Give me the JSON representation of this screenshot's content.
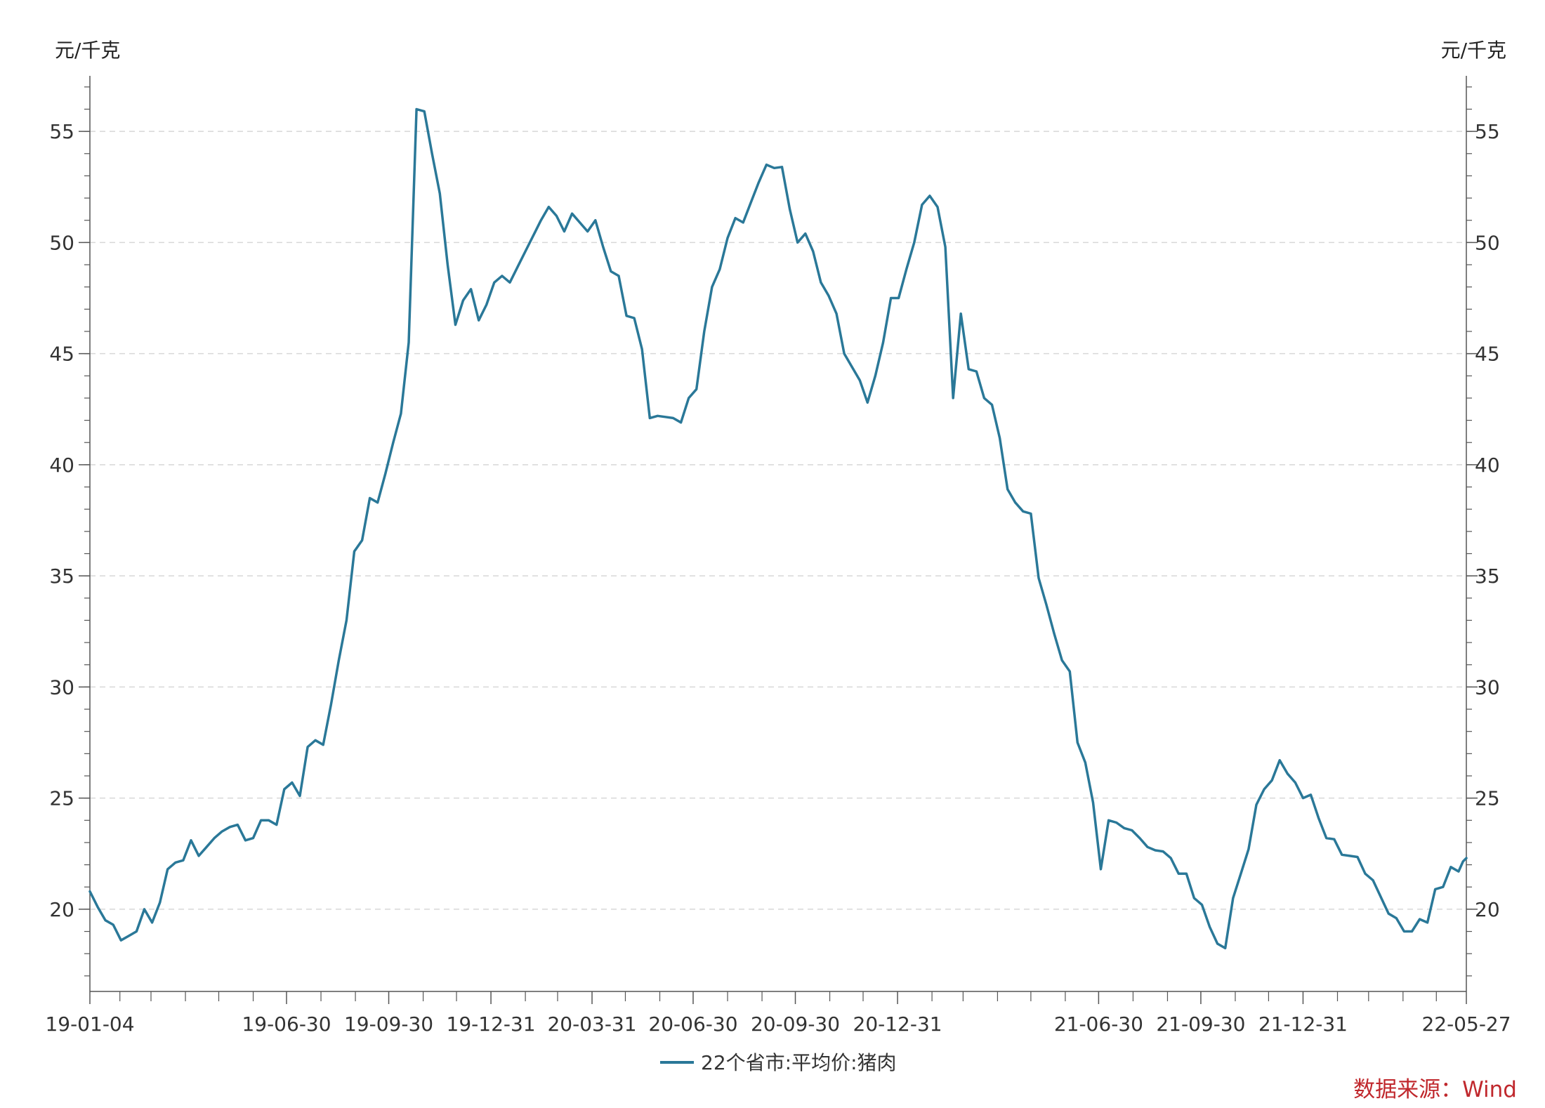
{
  "chart_data": {
    "type": "line",
    "y_unit_left": "元/千克",
    "y_unit_right": "元/千克",
    "ylim": [
      16.3,
      57.5
    ],
    "yticks": [
      20,
      25,
      30,
      35,
      40,
      45,
      50,
      55
    ],
    "grid": "horizontal-dashed",
    "x_range": [
      "2019-01-04",
      "2022-05-27"
    ],
    "xtick_labels": [
      {
        "date": "2019-01-04",
        "label": "19-01-04"
      },
      {
        "date": "2019-06-30",
        "label": "19-06-30"
      },
      {
        "date": "2019-09-30",
        "label": "19-09-30"
      },
      {
        "date": "2019-12-31",
        "label": "19-12-31"
      },
      {
        "date": "2020-03-31",
        "label": "20-03-31"
      },
      {
        "date": "2020-06-30",
        "label": "20-06-30"
      },
      {
        "date": "2020-09-30",
        "label": "20-09-30"
      },
      {
        "date": "2020-12-31",
        "label": "20-12-31"
      },
      {
        "date": "2021-06-30",
        "label": "21-06-30"
      },
      {
        "date": "2021-09-30",
        "label": "21-09-30"
      },
      {
        "date": "2021-12-31",
        "label": "21-12-31"
      },
      {
        "date": "2022-05-27",
        "label": "22-05-27"
      }
    ],
    "minor_tick_dates": [
      "2019-01-31",
      "2019-02-28",
      "2019-03-31",
      "2019-04-30",
      "2019-05-31",
      "2019-07-31",
      "2019-08-31",
      "2019-10-31",
      "2019-11-30",
      "2020-01-31",
      "2020-02-29",
      "2020-04-30",
      "2020-05-31",
      "2020-07-31",
      "2020-08-31",
      "2020-10-31",
      "2020-11-30",
      "2021-01-31",
      "2021-02-28",
      "2021-03-31",
      "2021-04-30",
      "2021-05-31",
      "2021-07-31",
      "2021-08-31",
      "2021-10-31",
      "2021-11-30",
      "2022-01-31",
      "2022-02-28",
      "2022-03-31",
      "2022-04-30"
    ],
    "legend": "bottom-center",
    "series": [
      {
        "name": "22个省市:平均价:猪肉",
        "color": "#2a7898",
        "points": [
          [
            "2019-01-04",
            20.8
          ],
          [
            "2019-01-11",
            20.1
          ],
          [
            "2019-01-18",
            19.5
          ],
          [
            "2019-01-25",
            19.3
          ],
          [
            "2019-02-01",
            18.6
          ],
          [
            "2019-02-08",
            18.8
          ],
          [
            "2019-02-15",
            19.0
          ],
          [
            "2019-02-22",
            20.0
          ],
          [
            "2019-03-01",
            19.4
          ],
          [
            "2019-03-08",
            20.3
          ],
          [
            "2019-03-15",
            21.8
          ],
          [
            "2019-03-22",
            22.1
          ],
          [
            "2019-03-29",
            22.2
          ],
          [
            "2019-04-05",
            23.1
          ],
          [
            "2019-04-12",
            22.4
          ],
          [
            "2019-04-19",
            22.8
          ],
          [
            "2019-04-26",
            23.2
          ],
          [
            "2019-05-03",
            23.5
          ],
          [
            "2019-05-10",
            23.7
          ],
          [
            "2019-05-17",
            23.8
          ],
          [
            "2019-05-24",
            23.1
          ],
          [
            "2019-05-31",
            23.2
          ],
          [
            "2019-06-07",
            24.0
          ],
          [
            "2019-06-14",
            24.0
          ],
          [
            "2019-06-21",
            23.8
          ],
          [
            "2019-06-28",
            25.4
          ],
          [
            "2019-07-05",
            25.7
          ],
          [
            "2019-07-12",
            25.1
          ],
          [
            "2019-07-19",
            27.3
          ],
          [
            "2019-07-26",
            27.6
          ],
          [
            "2019-08-02",
            27.4
          ],
          [
            "2019-08-09",
            29.2
          ],
          [
            "2019-08-16",
            31.2
          ],
          [
            "2019-08-23",
            33.0
          ],
          [
            "2019-08-30",
            36.1
          ],
          [
            "2019-09-06",
            36.6
          ],
          [
            "2019-09-13",
            38.5
          ],
          [
            "2019-09-20",
            38.3
          ],
          [
            "2019-09-27",
            39.6
          ],
          [
            "2019-10-04",
            41.0
          ],
          [
            "2019-10-11",
            42.3
          ],
          [
            "2019-10-18",
            45.5
          ],
          [
            "2019-10-25",
            56.0
          ],
          [
            "2019-11-01",
            55.9
          ],
          [
            "2019-11-08",
            54.0
          ],
          [
            "2019-11-15",
            52.2
          ],
          [
            "2019-11-22",
            49.0
          ],
          [
            "2019-11-29",
            46.3
          ],
          [
            "2019-12-06",
            47.4
          ],
          [
            "2019-12-13",
            47.9
          ],
          [
            "2019-12-20",
            46.5
          ],
          [
            "2019-12-27",
            47.2
          ],
          [
            "2020-01-03",
            48.2
          ],
          [
            "2020-01-10",
            48.5
          ],
          [
            "2020-01-17",
            48.2
          ],
          [
            "2020-01-24",
            48.9
          ],
          [
            "2020-01-31",
            49.6
          ],
          [
            "2020-02-07",
            50.3
          ],
          [
            "2020-02-14",
            51.0
          ],
          [
            "2020-02-21",
            51.6
          ],
          [
            "2020-02-28",
            51.2
          ],
          [
            "2020-03-06",
            50.5
          ],
          [
            "2020-03-13",
            51.3
          ],
          [
            "2020-03-20",
            50.9
          ],
          [
            "2020-03-27",
            50.5
          ],
          [
            "2020-04-03",
            51.0
          ],
          [
            "2020-04-10",
            49.8
          ],
          [
            "2020-04-17",
            48.7
          ],
          [
            "2020-04-24",
            48.5
          ],
          [
            "2020-05-01",
            46.7
          ],
          [
            "2020-05-08",
            46.6
          ],
          [
            "2020-05-15",
            45.2
          ],
          [
            "2020-05-22",
            42.1
          ],
          [
            "2020-05-29",
            42.2
          ],
          [
            "2020-06-05",
            42.15
          ],
          [
            "2020-06-12",
            42.1
          ],
          [
            "2020-06-19",
            41.9
          ],
          [
            "2020-06-26",
            43.0
          ],
          [
            "2020-07-03",
            43.4
          ],
          [
            "2020-07-10",
            46.0
          ],
          [
            "2020-07-17",
            48.0
          ],
          [
            "2020-07-24",
            48.8
          ],
          [
            "2020-07-31",
            50.2
          ],
          [
            "2020-08-07",
            51.1
          ],
          [
            "2020-08-14",
            50.9
          ],
          [
            "2020-08-21",
            51.8
          ],
          [
            "2020-08-28",
            52.7
          ],
          [
            "2020-09-04",
            53.5
          ],
          [
            "2020-09-11",
            53.35
          ],
          [
            "2020-09-18",
            53.4
          ],
          [
            "2020-09-25",
            51.5
          ],
          [
            "2020-10-02",
            50.0
          ],
          [
            "2020-10-09",
            50.4
          ],
          [
            "2020-10-16",
            49.6
          ],
          [
            "2020-10-23",
            48.2
          ],
          [
            "2020-10-30",
            47.6
          ],
          [
            "2020-11-06",
            46.8
          ],
          [
            "2020-11-13",
            45.0
          ],
          [
            "2020-11-20",
            44.4
          ],
          [
            "2020-11-27",
            43.8
          ],
          [
            "2020-12-04",
            42.8
          ],
          [
            "2020-12-11",
            44.0
          ],
          [
            "2020-12-18",
            45.5
          ],
          [
            "2020-12-25",
            47.5
          ],
          [
            "2021-01-01",
            47.5
          ],
          [
            "2021-01-08",
            48.8
          ],
          [
            "2021-01-15",
            50.0
          ],
          [
            "2021-01-22",
            51.7
          ],
          [
            "2021-01-29",
            52.1
          ],
          [
            "2021-02-05",
            51.6
          ],
          [
            "2021-02-12",
            49.8
          ],
          [
            "2021-02-19",
            43.0
          ],
          [
            "2021-02-26",
            46.8
          ],
          [
            "2021-03-05",
            44.3
          ],
          [
            "2021-03-12",
            44.2
          ],
          [
            "2021-03-19",
            43.0
          ],
          [
            "2021-03-26",
            42.7
          ],
          [
            "2021-04-02",
            41.2
          ],
          [
            "2021-04-09",
            38.9
          ],
          [
            "2021-04-16",
            38.3
          ],
          [
            "2021-04-23",
            37.9
          ],
          [
            "2021-04-30",
            37.8
          ],
          [
            "2021-05-07",
            34.9
          ],
          [
            "2021-05-14",
            33.7
          ],
          [
            "2021-05-21",
            32.4
          ],
          [
            "2021-05-28",
            31.2
          ],
          [
            "2021-06-04",
            30.7
          ],
          [
            "2021-06-11",
            27.5
          ],
          [
            "2021-06-18",
            26.6
          ],
          [
            "2021-06-25",
            24.8
          ],
          [
            "2021-07-02",
            21.8
          ],
          [
            "2021-07-09",
            24.0
          ],
          [
            "2021-07-16",
            23.9
          ],
          [
            "2021-07-23",
            23.65
          ],
          [
            "2021-07-30",
            23.55
          ],
          [
            "2021-08-06",
            23.2
          ],
          [
            "2021-08-13",
            22.8
          ],
          [
            "2021-08-20",
            22.65
          ],
          [
            "2021-08-27",
            22.6
          ],
          [
            "2021-09-03",
            22.3
          ],
          [
            "2021-09-10",
            21.6
          ],
          [
            "2021-09-17",
            21.6
          ],
          [
            "2021-09-24",
            20.5
          ],
          [
            "2021-10-01",
            20.2
          ],
          [
            "2021-10-08",
            19.2
          ],
          [
            "2021-10-15",
            18.45
          ],
          [
            "2021-10-22",
            18.25
          ],
          [
            "2021-10-29",
            20.5
          ],
          [
            "2021-11-05",
            21.6
          ],
          [
            "2021-11-12",
            22.7
          ],
          [
            "2021-11-19",
            24.7
          ],
          [
            "2021-11-26",
            25.4
          ],
          [
            "2021-12-03",
            25.8
          ],
          [
            "2021-12-10",
            26.7
          ],
          [
            "2021-12-17",
            26.1
          ],
          [
            "2021-12-24",
            25.7
          ],
          [
            "2021-12-31",
            25.0
          ],
          [
            "2022-01-07",
            25.15
          ],
          [
            "2022-01-14",
            24.1
          ],
          [
            "2022-01-21",
            23.2
          ],
          [
            "2022-01-28",
            23.15
          ],
          [
            "2022-02-04",
            22.45
          ],
          [
            "2022-02-11",
            22.4
          ],
          [
            "2022-02-18",
            22.35
          ],
          [
            "2022-02-25",
            21.6
          ],
          [
            "2022-03-04",
            21.3
          ],
          [
            "2022-03-11",
            20.55
          ],
          [
            "2022-03-18",
            19.8
          ],
          [
            "2022-03-25",
            19.6
          ],
          [
            "2022-04-01",
            19.0
          ],
          [
            "2022-04-08",
            19.0
          ],
          [
            "2022-04-15",
            19.55
          ],
          [
            "2022-04-22",
            19.4
          ],
          [
            "2022-04-29",
            20.9
          ],
          [
            "2022-05-06",
            21.0
          ],
          [
            "2022-05-13",
            21.9
          ],
          [
            "2022-05-20",
            21.7
          ],
          [
            "2022-05-24",
            22.15
          ],
          [
            "2022-05-27",
            22.3
          ]
        ]
      }
    ]
  },
  "source_note": "数据来源：Wind"
}
